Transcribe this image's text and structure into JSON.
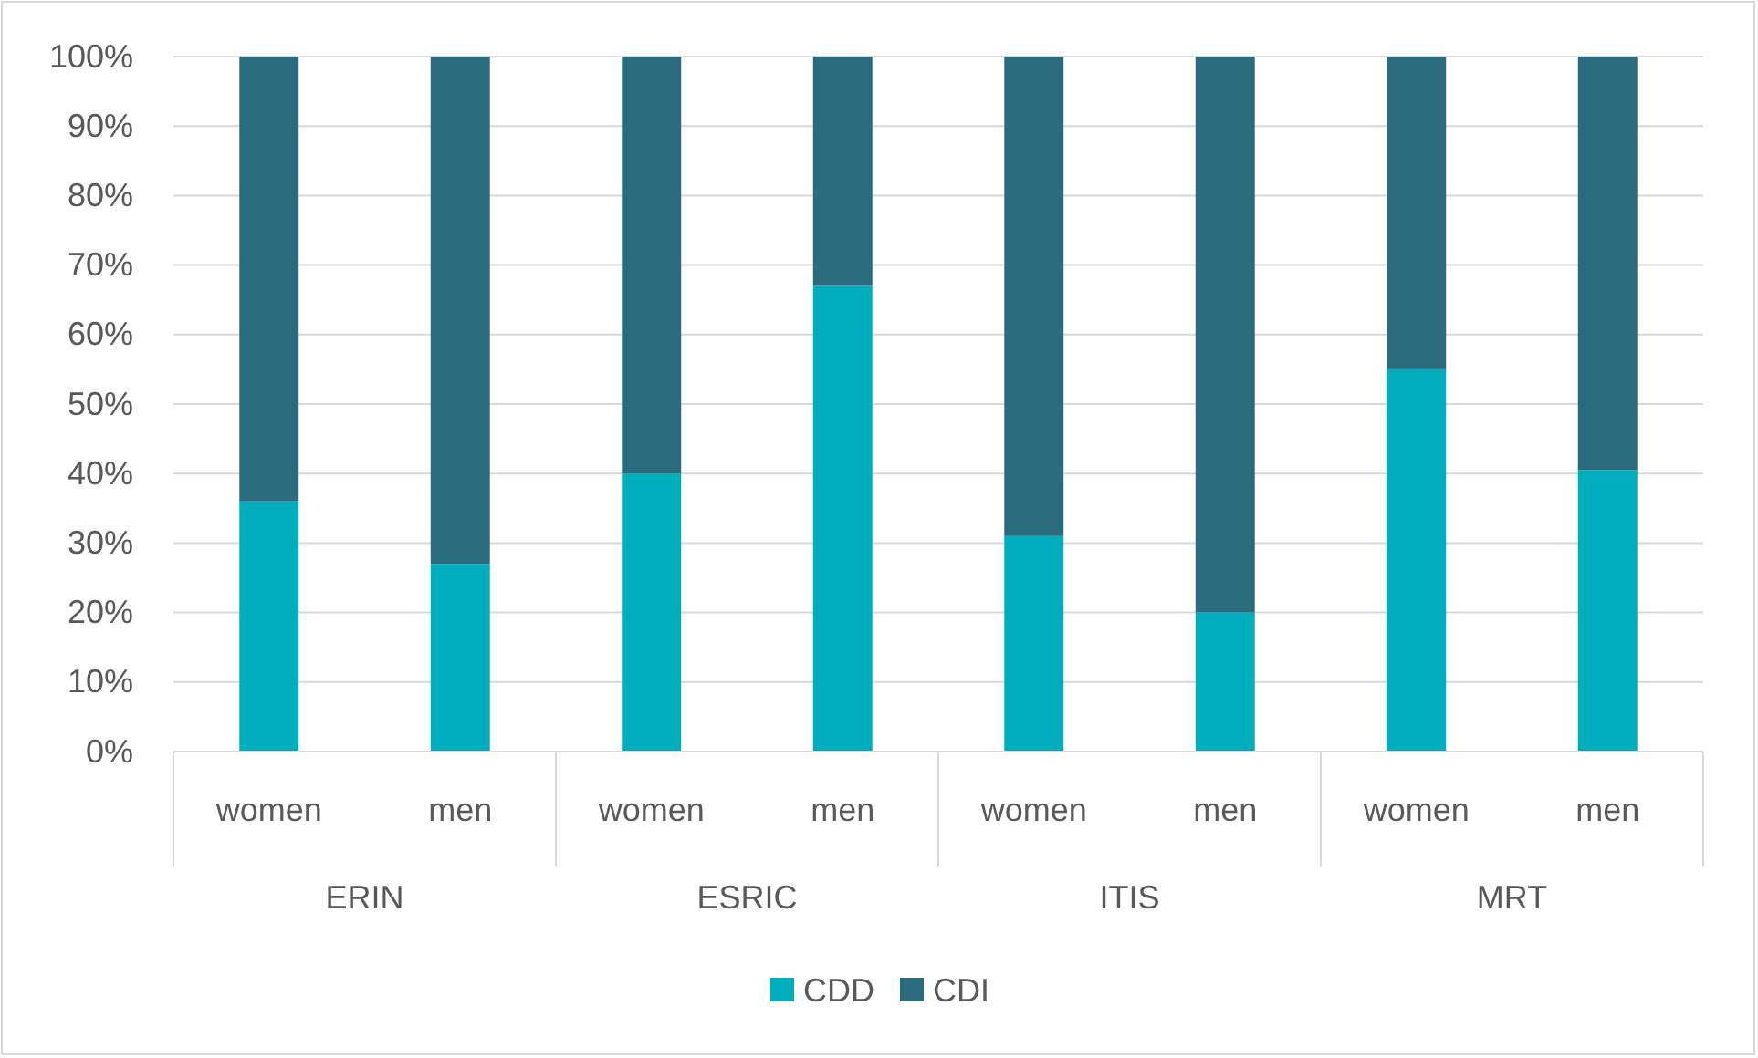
{
  "chart_data": {
    "type": "bar",
    "stacked": true,
    "categories": [
      "women",
      "men",
      "women",
      "men",
      "women",
      "men",
      "women",
      "men"
    ],
    "series": [
      {
        "name": "CDD",
        "color": "#00adbc",
        "values": [
          36,
          27,
          40,
          67,
          31,
          20,
          55,
          40.5
        ]
      },
      {
        "name": "CDI",
        "color": "#2a6b7e",
        "values": [
          64,
          73,
          60,
          33,
          69,
          80,
          45,
          59.5
        ]
      }
    ],
    "annotations": [
      "ERIN",
      "ESRIC",
      "ITIS",
      "MRT"
    ],
    "ylim": [
      0,
      100
    ],
    "yticks": [
      {
        "value": 0,
        "label": "0%"
      },
      {
        "value": 10,
        "label": "10%"
      },
      {
        "value": 20,
        "label": "20%"
      },
      {
        "value": 30,
        "label": "30%"
      },
      {
        "value": 40,
        "label": "40%"
      },
      {
        "value": 50,
        "label": "50%"
      },
      {
        "value": 60,
        "label": "60%"
      },
      {
        "value": 70,
        "label": "70%"
      },
      {
        "value": 80,
        "label": "80%"
      },
      {
        "value": 90,
        "label": "90%"
      },
      {
        "value": 100,
        "label": "100%"
      }
    ],
    "grid": "y",
    "legend": "bottom"
  }
}
